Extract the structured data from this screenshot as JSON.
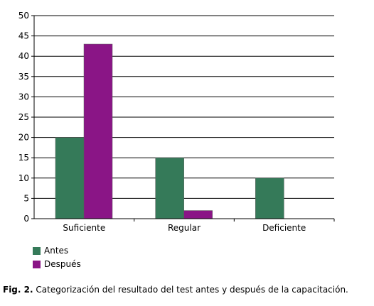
{
  "chart_data": {
    "type": "bar",
    "categories": [
      "Suficiente",
      "Regular",
      "Deficiente"
    ],
    "series": [
      {
        "name": "Antes",
        "values": [
          20,
          15,
          10
        ],
        "color": "#357a59"
      },
      {
        "name": "Después",
        "values": [
          43,
          2,
          0
        ],
        "color": "#8a1586"
      }
    ],
    "yticks": [
      "0",
      "5",
      "10",
      "15",
      "20",
      "25",
      "30",
      "35",
      "40",
      "45",
      "50"
    ],
    "ylim": [
      0,
      50
    ],
    "grid": true,
    "legend_position": "bottom-left"
  },
  "caption": {
    "label": "Fig. 2.",
    "text": "Categorización del resultado del test antes y después de la capacitación."
  }
}
